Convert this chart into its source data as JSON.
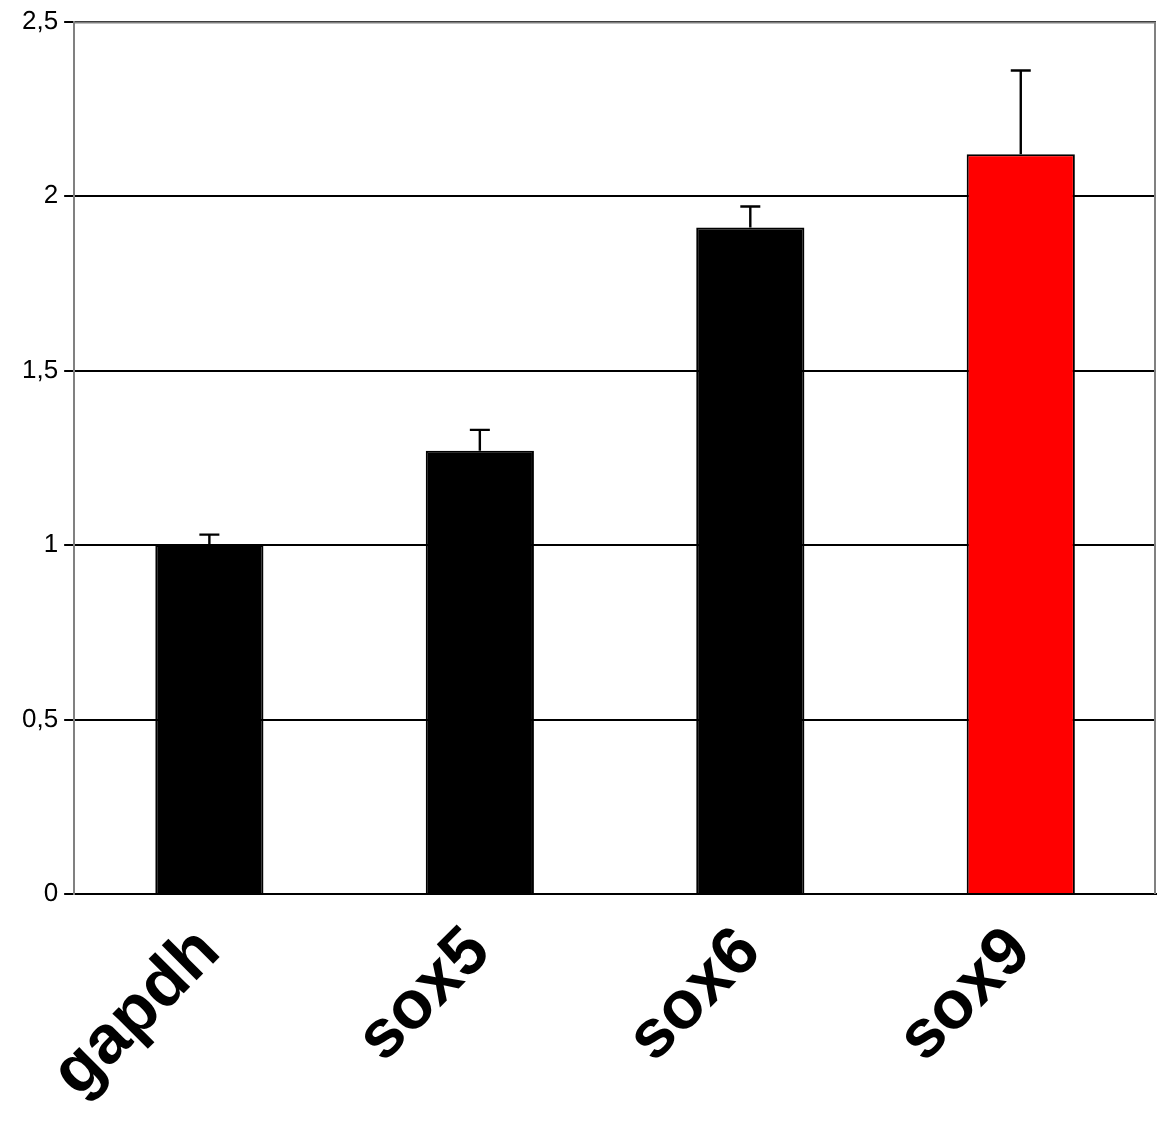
{
  "chart_data": {
    "type": "bar",
    "categories": [
      "gapdh",
      "sox5",
      "sox6",
      "sox9"
    ],
    "values": [
      1.0,
      1.27,
      1.91,
      2.12
    ],
    "colors": [
      "#000000",
      "#000000",
      "#000000",
      "#ff0000"
    ],
    "errors": [
      [
        1.0,
        1.03
      ],
      [
        1.27,
        1.33
      ],
      [
        1.91,
        1.97
      ],
      [
        2.12,
        2.36
      ]
    ],
    "ylim": [
      0,
      2.5
    ],
    "yticks": [
      {
        "value": 0,
        "label": "0"
      },
      {
        "value": 0.5,
        "label": "0,5"
      },
      {
        "value": 1,
        "label": "1"
      },
      {
        "value": 1.5,
        "label": "1,5"
      },
      {
        "value": 2,
        "label": "2"
      },
      {
        "value": 2.5,
        "label": "2,5"
      }
    ],
    "grid": "y",
    "legend": false
  }
}
